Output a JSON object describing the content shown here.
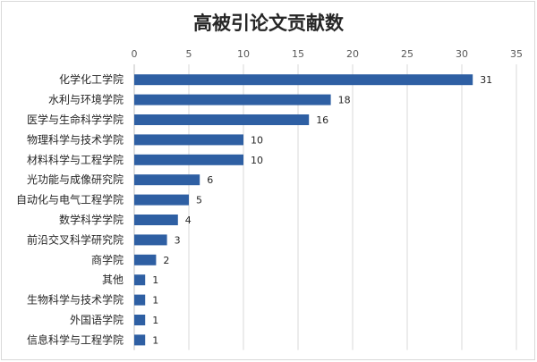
{
  "chart_data": {
    "type": "bar",
    "orientation": "horizontal",
    "title": "高被引论文贡献数",
    "categories": [
      "化学化工学院",
      "水利与环境学院",
      "医学与生命科学学院",
      "物理科学与技术学院",
      "材料科学与工程学院",
      "光功能与成像研究院",
      "自动化与电气工程学院",
      "数学科学学院",
      "前沿交叉科学研究院",
      "商学院",
      "其他",
      "生物科学与技术学院",
      "外国语学院",
      "信息科学与工程学院"
    ],
    "values": [
      31,
      18,
      16,
      10,
      10,
      6,
      5,
      4,
      3,
      2,
      1,
      1,
      1,
      1
    ],
    "xlim": [
      0,
      35
    ],
    "xticks": [
      0,
      5,
      10,
      15,
      20,
      25,
      30,
      35
    ],
    "axis_position": "top",
    "grid": true,
    "legend": "none",
    "bar_color": "#2e5fa3"
  }
}
